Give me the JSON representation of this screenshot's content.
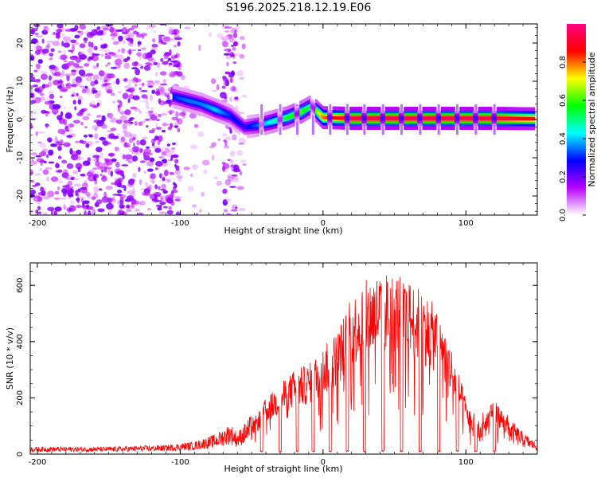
{
  "title": "S196.2025.218.12.19.E06",
  "chart_data": [
    {
      "type": "heatmap",
      "xlabel": "Height of straight line (km)",
      "ylabel": "Frequency (Hz)",
      "xlim": [
        -205,
        150
      ],
      "ylim": [
        -25,
        25
      ],
      "x_ticks": [
        -200,
        -100,
        0,
        100
      ],
      "y_ticks": [
        -20,
        -10,
        0,
        10,
        20
      ],
      "grid": false,
      "colorbar": {
        "label": "Normalized spectral amplitude",
        "range": [
          0,
          1
        ],
        "ticks": [
          0.0,
          0.2,
          0.4,
          0.6,
          0.8
        ],
        "tick_labels": [
          "0.0",
          "0.2",
          "0.4",
          "0.6",
          "0.8"
        ],
        "colormap": [
          "#ffffff",
          "#b700ff",
          "#0000ff",
          "#00ffff",
          "#00ff00",
          "#ffff00",
          "#ff0000",
          "#ff0080"
        ]
      },
      "ridge": {
        "x": [
          -105,
          -95,
          -85,
          -75,
          -65,
          -55,
          -45,
          -35,
          -25,
          -15,
          -8,
          0,
          20,
          40,
          60,
          80,
          100,
          120,
          148
        ],
        "frequency": [
          6,
          5,
          4,
          2.5,
          1,
          -2,
          -1.5,
          -0.5,
          0.5,
          2,
          3.5,
          0.5,
          0.3,
          0.3,
          0.3,
          0.3,
          0.3,
          0.3,
          0.2
        ],
        "peak_amplitude": [
          0.3,
          0.35,
          0.35,
          0.4,
          0.3,
          0.25,
          0.35,
          0.45,
          0.55,
          0.6,
          0.5,
          0.8,
          0.95,
          0.95,
          0.95,
          0.95,
          0.95,
          0.95,
          0.85
        ]
      },
      "noise_regions": [
        {
          "x_range": [
            -205,
            -100
          ],
          "amplitude_range": [
            0,
            0.1
          ],
          "density": "high"
        },
        {
          "x_range": [
            -100,
            -55
          ],
          "amplitude_range": [
            0,
            0.05
          ],
          "density": "low"
        },
        {
          "x_range": [
            -70,
            -60
          ],
          "amplitude_range": [
            0,
            0.1
          ],
          "density": "high"
        }
      ]
    },
    {
      "type": "line",
      "xlabel": "Height of straight line (km)",
      "ylabel": "SNR (10 * v/v)",
      "xlim": [
        -205,
        150
      ],
      "ylim": [
        0,
        680
      ],
      "x_ticks": [
        -200,
        -100,
        0,
        100
      ],
      "y_ticks": [
        0,
        200,
        400,
        600
      ],
      "grid": false,
      "color": "#ff0000",
      "envelope": {
        "x": [
          -205,
          -150,
          -110,
          -90,
          -75,
          -65,
          -60,
          -50,
          -40,
          -30,
          -20,
          -10,
          0,
          10,
          20,
          30,
          40,
          50,
          60,
          70,
          80,
          90,
          100,
          105,
          110,
          115,
          120,
          125,
          130,
          140,
          150
        ],
        "snr": [
          20,
          20,
          25,
          35,
          55,
          85,
          60,
          110,
          200,
          250,
          300,
          320,
          380,
          440,
          560,
          620,
          650,
          650,
          620,
          580,
          520,
          380,
          200,
          120,
          90,
          160,
          190,
          160,
          100,
          60,
          30
        ]
      },
      "dips": {
        "x": [
          -43,
          -30,
          -18,
          -7,
          5,
          17,
          29,
          42,
          55,
          68,
          81,
          94,
          107,
          120
        ],
        "snr": [
          8,
          8,
          8,
          8,
          8,
          8,
          8,
          8,
          8,
          8,
          8,
          8,
          8,
          8
        ]
      }
    }
  ]
}
